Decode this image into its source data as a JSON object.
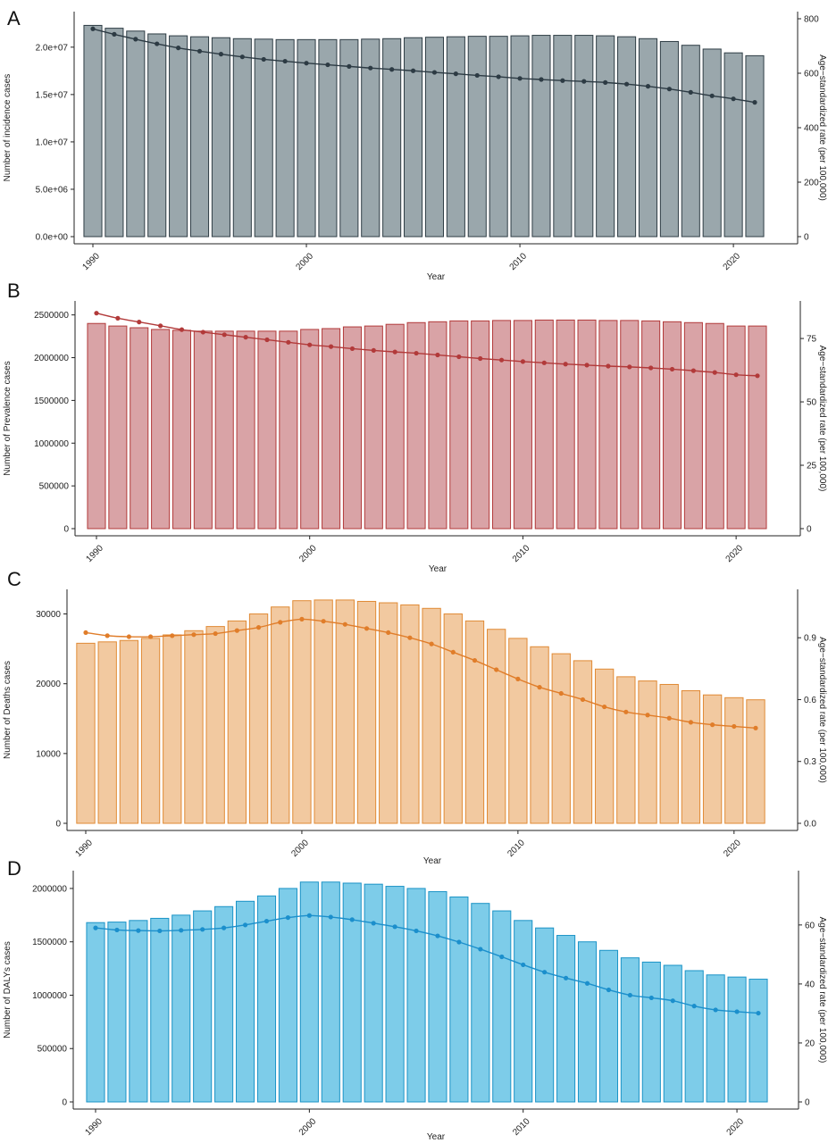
{
  "chart_data": [
    {
      "type": "bar",
      "panel": "A",
      "xlabel": "Year",
      "ylabel": "Number of incidence cases",
      "y2label": "Age−standardized rate (per 100,000)",
      "x": [
        1990,
        1991,
        1992,
        1993,
        1994,
        1995,
        1996,
        1997,
        1998,
        1999,
        2000,
        2001,
        2002,
        2003,
        2004,
        2005,
        2006,
        2007,
        2008,
        2009,
        2010,
        2011,
        2012,
        2013,
        2014,
        2015,
        2016,
        2017,
        2018,
        2019,
        2020,
        2021
      ],
      "x_ticks": [
        1990,
        2000,
        2010,
        2020
      ],
      "y_ticks": [
        0,
        5000000,
        10000000,
        15000000,
        20000000
      ],
      "y_tick_labels": [
        "0.0e+00",
        "5.0e+06",
        "1.0e+07",
        "1.5e+07",
        "2.0e+07"
      ],
      "ylim": [
        0,
        23000000
      ],
      "y2_ticks": [
        0,
        200,
        400,
        600,
        800
      ],
      "y2lim": [
        0,
        800
      ],
      "series": [
        {
          "kind": "bar",
          "values": [
            22300000,
            22000000,
            21700000,
            21400000,
            21200000,
            21100000,
            21000000,
            20900000,
            20850000,
            20800000,
            20800000,
            20800000,
            20800000,
            20850000,
            20900000,
            21000000,
            21050000,
            21100000,
            21150000,
            21150000,
            21200000,
            21250000,
            21250000,
            21250000,
            21200000,
            21100000,
            20900000,
            20600000,
            20200000,
            19800000,
            19400000,
            19100000
          ]
        },
        {
          "kind": "line",
          "axis": "right",
          "values": [
            763,
            743,
            725,
            708,
            693,
            681,
            670,
            660,
            651,
            644,
            637,
            631,
            625,
            619,
            614,
            609,
            603,
            598,
            592,
            587,
            581,
            577,
            573,
            570,
            566,
            560,
            552,
            542,
            530,
            517,
            506,
            493
          ]
        }
      ],
      "colors": {
        "bar_fill": "#9aa7ac",
        "bar_stroke": "#2f3d45",
        "line": "#2d3b44"
      }
    },
    {
      "type": "bar",
      "panel": "B",
      "xlabel": "Year",
      "ylabel": "Number of Prevalence cases",
      "y2label": "Age−standardized rate (per 100,000)",
      "x": [
        1990,
        1991,
        1992,
        1993,
        1994,
        1995,
        1996,
        1997,
        1998,
        1999,
        2000,
        2001,
        2002,
        2003,
        2004,
        2005,
        2006,
        2007,
        2008,
        2009,
        2010,
        2011,
        2012,
        2013,
        2014,
        2015,
        2016,
        2017,
        2018,
        2019,
        2020,
        2021
      ],
      "x_ticks": [
        1990,
        2000,
        2010,
        2020
      ],
      "y_ticks": [
        0,
        500000,
        1000000,
        1500000,
        2000000,
        2500000
      ],
      "y_tick_labels": [
        "0",
        "500000",
        "1000000",
        "1500000",
        "2000000",
        "2500000"
      ],
      "ylim": [
        0,
        2580000
      ],
      "y2_ticks": [
        0,
        25,
        50,
        75
      ],
      "y2lim": [
        0,
        87
      ],
      "series": [
        {
          "kind": "bar",
          "values": [
            2400000,
            2370000,
            2350000,
            2330000,
            2320000,
            2310000,
            2310000,
            2310000,
            2310000,
            2310000,
            2330000,
            2340000,
            2360000,
            2370000,
            2390000,
            2410000,
            2420000,
            2430000,
            2430000,
            2435000,
            2435000,
            2440000,
            2440000,
            2440000,
            2435000,
            2435000,
            2430000,
            2420000,
            2410000,
            2400000,
            2370000,
            2370000
          ]
        },
        {
          "kind": "line",
          "axis": "right",
          "values": [
            85,
            83,
            81.5,
            80,
            78.5,
            77.5,
            76.5,
            75.5,
            74.5,
            73.5,
            72.5,
            71.8,
            71,
            70.3,
            69.7,
            69.2,
            68.5,
            67.8,
            67.1,
            66.5,
            65.9,
            65.4,
            64.9,
            64.5,
            64.1,
            63.8,
            63.4,
            62.9,
            62.3,
            61.6,
            60.7,
            60.3
          ]
        }
      ],
      "colors": {
        "bar_fill": "#d9a3a6",
        "bar_stroke": "#b23a3a",
        "line": "#b23a3a"
      }
    },
    {
      "type": "bar",
      "panel": "C",
      "xlabel": "Year",
      "ylabel": "Number of Deaths cases",
      "y2label": "Age−standardized rate (per 100,000)",
      "x": [
        1990,
        1991,
        1992,
        1993,
        1994,
        1995,
        1996,
        1997,
        1998,
        1999,
        2000,
        2001,
        2002,
        2003,
        2004,
        2005,
        2006,
        2007,
        2008,
        2009,
        2010,
        2011,
        2012,
        2013,
        2014,
        2015,
        2016,
        2017,
        2018,
        2019,
        2020,
        2021
      ],
      "x_ticks": [
        1990,
        2000,
        2010,
        2020
      ],
      "y_ticks": [
        0,
        10000,
        20000,
        30000
      ],
      "y_tick_labels": [
        "0",
        "10000",
        "20000",
        "30000"
      ],
      "ylim": [
        0,
        32500
      ],
      "y2_ticks": [
        0,
        0.3,
        0.6,
        0.9
      ],
      "y2_tick_labels": [
        "0.0",
        "0.3",
        "0.6",
        "0.9"
      ],
      "y2lim": [
        0,
        1.1
      ],
      "series": [
        {
          "kind": "bar",
          "values": [
            25800,
            26000,
            26200,
            26500,
            27000,
            27600,
            28200,
            29000,
            30000,
            31000,
            31900,
            32000,
            32000,
            31800,
            31600,
            31300,
            30800,
            30000,
            29000,
            27800,
            26500,
            25300,
            24300,
            23300,
            22100,
            21000,
            20400,
            19900,
            19000,
            18400,
            18000,
            17700
          ]
        },
        {
          "kind": "line",
          "axis": "right",
          "values": [
            0.925,
            0.91,
            0.905,
            0.905,
            0.91,
            0.915,
            0.92,
            0.935,
            0.95,
            0.975,
            0.99,
            0.98,
            0.965,
            0.945,
            0.925,
            0.9,
            0.87,
            0.83,
            0.79,
            0.745,
            0.7,
            0.66,
            0.63,
            0.6,
            0.565,
            0.54,
            0.525,
            0.51,
            0.49,
            0.478,
            0.47,
            0.462
          ]
        }
      ],
      "colors": {
        "bar_fill": "#f2c9a0",
        "bar_stroke": "#e08a35",
        "line": "#e07d2a"
      }
    },
    {
      "type": "bar",
      "panel": "D",
      "xlabel": "Year",
      "ylabel": "Number of DALYs cases",
      "y2label": "Age−standardized rate (per 100,000)",
      "x": [
        1990,
        1991,
        1992,
        1993,
        1994,
        1995,
        1996,
        1997,
        1998,
        1999,
        2000,
        2001,
        2002,
        2003,
        2004,
        2005,
        2006,
        2007,
        2008,
        2009,
        2010,
        2011,
        2012,
        2013,
        2014,
        2015,
        2016,
        2017,
        2018,
        2019,
        2020,
        2021
      ],
      "x_ticks": [
        1990,
        2000,
        2010,
        2020
      ],
      "y_ticks": [
        0,
        500000,
        1000000,
        1500000,
        2000000
      ],
      "y_tick_labels": [
        "0",
        "500000",
        "1000000",
        "1500000",
        "2000000"
      ],
      "ylim": [
        0,
        2100000
      ],
      "y2_ticks": [
        0,
        20,
        40,
        60
      ],
      "y2lim": [
        0,
        76
      ],
      "series": [
        {
          "kind": "bar",
          "values": [
            1680000,
            1685000,
            1700000,
            1720000,
            1750000,
            1790000,
            1830000,
            1880000,
            1930000,
            2000000,
            2060000,
            2060000,
            2050000,
            2040000,
            2020000,
            2000000,
            1970000,
            1920000,
            1860000,
            1790000,
            1700000,
            1630000,
            1560000,
            1500000,
            1420000,
            1350000,
            1310000,
            1280000,
            1230000,
            1190000,
            1170000,
            1150000
          ]
        },
        {
          "kind": "line",
          "axis": "right",
          "values": [
            59,
            58.3,
            58.1,
            58,
            58.2,
            58.5,
            59,
            60,
            61.3,
            62.5,
            63.2,
            62.7,
            61.8,
            60.6,
            59.4,
            58,
            56.3,
            54.2,
            51.8,
            49.2,
            46.5,
            44,
            42,
            40.2,
            38,
            36.2,
            35.3,
            34.3,
            32.5,
            31.2,
            30.6,
            30.1
          ]
        }
      ],
      "colors": {
        "bar_fill": "#7dcce9",
        "bar_stroke": "#1b93c6",
        "line": "#1b8fcc"
      }
    }
  ]
}
